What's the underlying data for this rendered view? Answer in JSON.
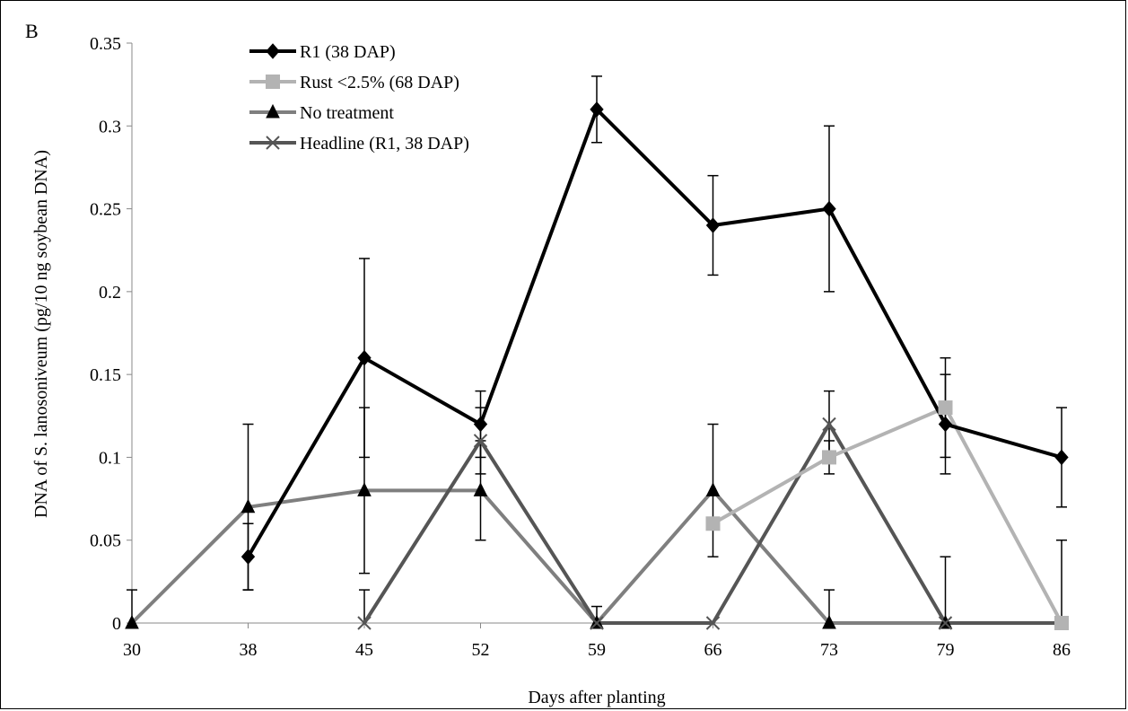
{
  "chart_data": {
    "type": "line",
    "panel_label": "B",
    "xlabel": "Days after planting",
    "ylabel": "DNA of S. lanosoniveum (pg/10 ng soybean DNA)",
    "categories": [
      "30",
      "38",
      "45",
      "52",
      "59",
      "66",
      "73",
      "79",
      "86"
    ],
    "ylim": [
      0,
      0.35
    ],
    "yticks": [
      "0",
      "0.05",
      "0.1",
      "0.15",
      "0.2",
      "0.25",
      "0.3",
      "0.35"
    ],
    "grid": false,
    "legend_position": "top-left",
    "series": [
      {
        "name": "R1 (38 DAP)",
        "color": "#000000",
        "marker": "diamond",
        "values": [
          null,
          0.04,
          0.16,
          0.12,
          0.31,
          0.24,
          0.25,
          0.12,
          0.1
        ],
        "errors": [
          null,
          0.02,
          0.06,
          0.02,
          0.02,
          0.03,
          0.05,
          0.03,
          0.03
        ]
      },
      {
        "name": "Rust <2.5% (68 DAP)",
        "color": "#b3b3b3",
        "marker": "square",
        "values": [
          null,
          null,
          null,
          null,
          null,
          0.06,
          0.1,
          0.13,
          0.0
        ],
        "errors": [
          null,
          null,
          null,
          null,
          null,
          null,
          0.01,
          0.03,
          null
        ]
      },
      {
        "name": "No treatment",
        "color": "#7f7f7f",
        "marker": "triangle",
        "values": [
          0.0,
          0.07,
          0.08,
          0.08,
          0.0,
          0.08,
          0.0,
          0.0,
          0.0
        ],
        "errors": [
          0.02,
          0.05,
          0.05,
          0.03,
          0.01,
          0.04,
          0.02,
          0.04,
          0.05
        ]
      },
      {
        "name": "Headline (R1, 38 DAP)",
        "color": "#555555",
        "marker": "x",
        "values": [
          null,
          null,
          0.0,
          0.11,
          0.0,
          0.0,
          0.12,
          0.0,
          0.0
        ],
        "errors": [
          null,
          null,
          0.02,
          0.02,
          null,
          null,
          0.02,
          null,
          null
        ]
      }
    ]
  }
}
